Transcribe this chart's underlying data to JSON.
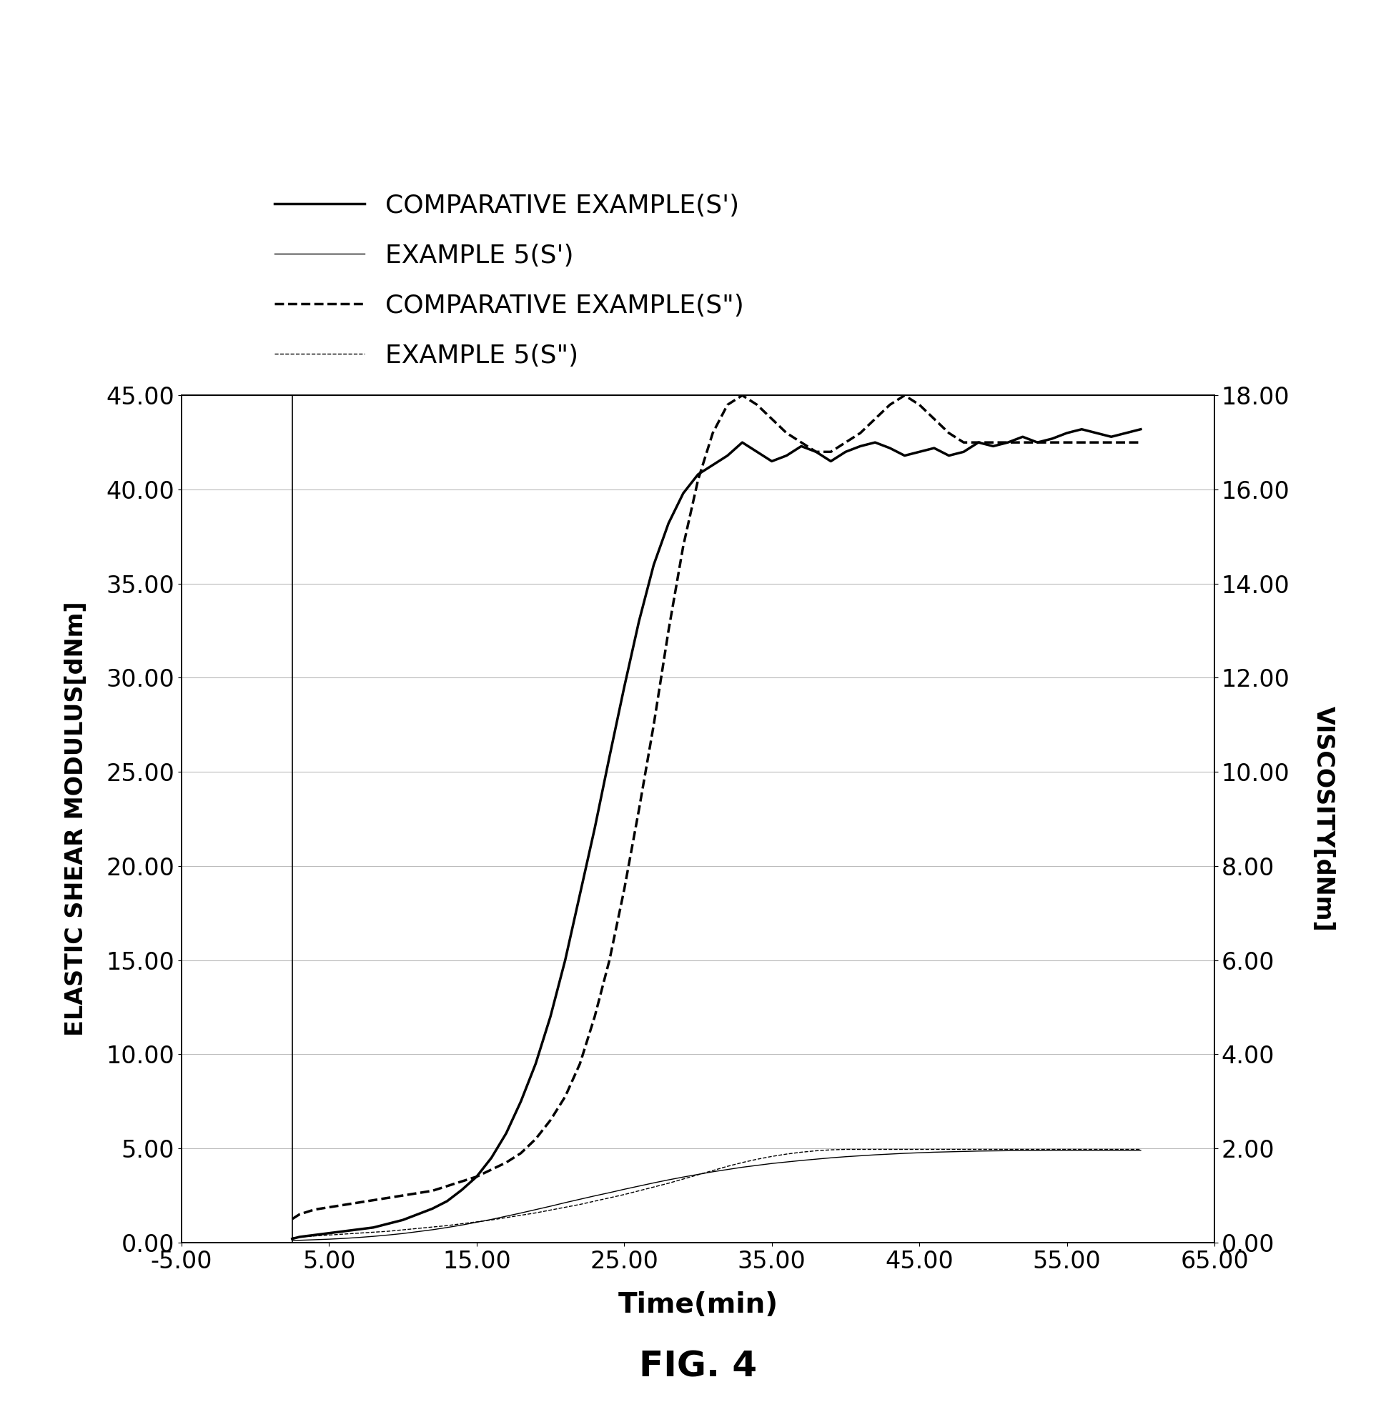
{
  "title": "FIG. 4",
  "xlabel": "Time(min)",
  "ylabel_left": "ELASTIC SHEAR MODULUS[dNm]",
  "ylabel_right": "VISCOSITY[dNm]",
  "xlim": [
    -5.0,
    64.0
  ],
  "ylim_left": [
    0.0,
    45.0
  ],
  "ylim_right": [
    0.0,
    18.0
  ],
  "xticks": [
    -5.0,
    5.0,
    15.0,
    25.0,
    35.0,
    45.0,
    55.0,
    65.0
  ],
  "xtick_labels": [
    "-5.00",
    "5.00",
    "15.00",
    "25.00",
    "35.00",
    "45.00",
    "55.00",
    "65.00"
  ],
  "yticks_left": [
    0.0,
    5.0,
    10.0,
    15.0,
    20.0,
    25.0,
    30.0,
    35.0,
    40.0,
    45.0
  ],
  "ytick_labels_left": [
    "0.00",
    "5.00",
    "10.00",
    "15.00",
    "20.00",
    "25.00",
    "30.00",
    "35.00",
    "40.00",
    "45.00"
  ],
  "yticks_right": [
    0.0,
    2.0,
    4.0,
    6.0,
    8.0,
    10.0,
    12.0,
    14.0,
    16.0,
    18.0
  ],
  "ytick_labels_right": [
    "0.00",
    "2.00",
    "4.00",
    "6.00",
    "8.00",
    "10.00",
    "12.00",
    "14.00",
    "16.00",
    "18.00"
  ],
  "background_color": "#ffffff",
  "grid_color": "#bbbbbb",
  "comp_sp_x": [
    2.5,
    3.0,
    4.0,
    5.0,
    6.0,
    7.0,
    8.0,
    9.0,
    10.0,
    11.0,
    12.0,
    13.0,
    14.0,
    15.0,
    16.0,
    17.0,
    18.0,
    19.0,
    20.0,
    21.0,
    22.0,
    23.0,
    24.0,
    25.0,
    26.0,
    27.0,
    28.0,
    29.0,
    30.0,
    31.0,
    32.0,
    33.0,
    34.0,
    35.0,
    36.0,
    37.0,
    38.0,
    39.0,
    40.0,
    41.0,
    42.0,
    43.0,
    44.0,
    45.0,
    46.0,
    47.0,
    48.0,
    49.0,
    50.0,
    51.0,
    52.0,
    53.0,
    54.0,
    55.0,
    56.0,
    57.0,
    58.0,
    59.0,
    60.0
  ],
  "comp_sp_y": [
    0.2,
    0.3,
    0.4,
    0.5,
    0.6,
    0.7,
    0.8,
    1.0,
    1.2,
    1.5,
    1.8,
    2.2,
    2.8,
    3.5,
    4.5,
    5.8,
    7.5,
    9.5,
    12.0,
    15.0,
    18.5,
    22.0,
    25.8,
    29.5,
    33.0,
    36.0,
    38.2,
    39.8,
    40.8,
    41.3,
    41.8,
    42.5,
    42.0,
    41.5,
    41.8,
    42.3,
    42.0,
    41.5,
    42.0,
    42.3,
    42.5,
    42.2,
    41.8,
    42.0,
    42.2,
    41.8,
    42.0,
    42.5,
    42.3,
    42.5,
    42.8,
    42.5,
    42.7,
    43.0,
    43.2,
    43.0,
    42.8,
    43.0,
    43.2
  ],
  "ex5_sp_x": [
    2.5,
    3.0,
    4.0,
    5.0,
    6.0,
    7.0,
    8.0,
    9.0,
    10.0,
    11.0,
    12.0,
    13.0,
    14.0,
    15.0,
    16.0,
    17.0,
    18.0,
    19.0,
    20.0,
    21.0,
    22.0,
    23.0,
    24.0,
    25.0,
    26.0,
    27.0,
    28.0,
    29.0,
    30.0,
    31.0,
    32.0,
    33.0,
    34.0,
    35.0,
    36.0,
    37.0,
    38.0,
    39.0,
    40.0,
    41.0,
    42.0,
    43.0,
    44.0,
    45.0,
    46.0,
    47.0,
    48.0,
    49.0,
    50.0,
    51.0,
    52.0,
    53.0,
    54.0,
    55.0,
    56.0,
    57.0,
    58.0,
    59.0,
    60.0
  ],
  "ex5_sp_y": [
    0.1,
    0.12,
    0.15,
    0.18,
    0.22,
    0.27,
    0.33,
    0.4,
    0.48,
    0.58,
    0.68,
    0.8,
    0.93,
    1.08,
    1.23,
    1.4,
    1.57,
    1.75,
    1.93,
    2.12,
    2.3,
    2.48,
    2.65,
    2.83,
    3.0,
    3.17,
    3.33,
    3.48,
    3.62,
    3.76,
    3.88,
    4.0,
    4.1,
    4.2,
    4.28,
    4.36,
    4.43,
    4.5,
    4.56,
    4.61,
    4.66,
    4.7,
    4.74,
    4.77,
    4.8,
    4.82,
    4.84,
    4.86,
    4.87,
    4.88,
    4.89,
    4.89,
    4.9,
    4.9,
    4.9,
    4.9,
    4.9,
    4.9,
    4.9
  ],
  "comp_spp_x": [
    2.5,
    3.0,
    4.0,
    5.0,
    6.0,
    7.0,
    8.0,
    9.0,
    10.0,
    11.0,
    12.0,
    13.0,
    14.0,
    15.0,
    16.0,
    17.0,
    18.0,
    19.0,
    20.0,
    21.0,
    22.0,
    23.0,
    24.0,
    25.0,
    26.0,
    27.0,
    28.0,
    29.0,
    30.0,
    31.0,
    32.0,
    33.0,
    34.0,
    35.0,
    36.0,
    37.0,
    38.0,
    39.0,
    40.0,
    41.0,
    42.0,
    43.0,
    44.0,
    45.0,
    46.0,
    47.0,
    48.0,
    49.0,
    50.0,
    51.0,
    52.0,
    53.0,
    54.0,
    55.0,
    56.0,
    57.0,
    58.0,
    59.0,
    60.0
  ],
  "comp_spp_y": [
    0.5,
    0.6,
    0.7,
    0.75,
    0.8,
    0.85,
    0.9,
    0.95,
    1.0,
    1.05,
    1.1,
    1.2,
    1.3,
    1.4,
    1.55,
    1.7,
    1.9,
    2.2,
    2.6,
    3.1,
    3.8,
    4.8,
    6.0,
    7.5,
    9.2,
    11.0,
    13.0,
    14.8,
    16.2,
    17.2,
    17.8,
    18.0,
    17.8,
    17.5,
    17.2,
    17.0,
    16.8,
    16.8,
    17.0,
    17.2,
    17.5,
    17.8,
    18.0,
    17.8,
    17.5,
    17.2,
    17.0,
    17.0,
    17.0,
    17.0,
    17.0,
    17.0,
    17.0,
    17.0,
    17.0,
    17.0,
    17.0,
    17.0,
    17.0
  ],
  "ex5_spp_x": [
    2.5,
    3.0,
    4.0,
    5.0,
    6.0,
    7.0,
    8.0,
    9.0,
    10.0,
    11.0,
    12.0,
    13.0,
    14.0,
    15.0,
    16.0,
    17.0,
    18.0,
    19.0,
    20.0,
    21.0,
    22.0,
    23.0,
    24.0,
    25.0,
    26.0,
    27.0,
    28.0,
    29.0,
    30.0,
    31.0,
    32.0,
    33.0,
    34.0,
    35.0,
    36.0,
    37.0,
    38.0,
    39.0,
    40.0,
    41.0,
    42.0,
    43.0,
    44.0,
    45.0,
    46.0,
    47.0,
    48.0,
    49.0,
    50.0,
    51.0,
    52.0,
    53.0,
    54.0,
    55.0,
    56.0,
    57.0,
    58.0,
    59.0,
    60.0
  ],
  "ex5_spp_y": [
    0.1,
    0.12,
    0.14,
    0.16,
    0.18,
    0.2,
    0.22,
    0.24,
    0.27,
    0.3,
    0.33,
    0.36,
    0.4,
    0.44,
    0.48,
    0.53,
    0.58,
    0.63,
    0.69,
    0.75,
    0.81,
    0.88,
    0.95,
    1.02,
    1.1,
    1.18,
    1.26,
    1.35,
    1.44,
    1.53,
    1.62,
    1.7,
    1.77,
    1.83,
    1.88,
    1.92,
    1.95,
    1.97,
    1.98,
    1.98,
    1.98,
    1.98,
    1.98,
    1.98,
    1.98,
    1.98,
    1.98,
    1.98,
    1.98,
    1.98,
    1.98,
    1.98,
    1.98,
    1.98,
    1.98,
    1.98,
    1.98,
    1.98,
    1.98
  ]
}
